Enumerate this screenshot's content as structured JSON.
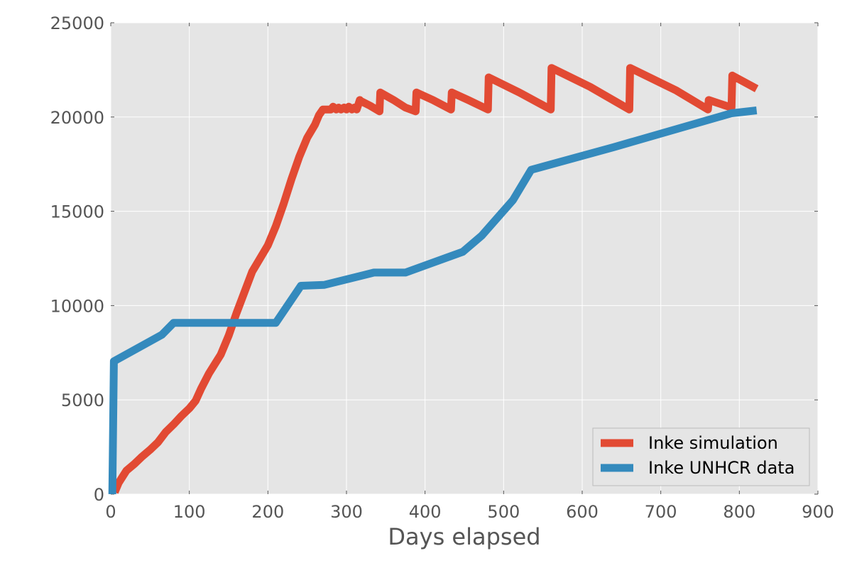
{
  "chart_data": {
    "type": "line",
    "title": "",
    "xlabel": "Days elapsed",
    "ylabel": "",
    "xlim": [
      0,
      900
    ],
    "ylim": [
      0,
      25000
    ],
    "xticks": [
      0,
      100,
      200,
      300,
      400,
      500,
      600,
      700,
      800,
      900
    ],
    "yticks": [
      0,
      5000,
      10000,
      15000,
      20000,
      25000
    ],
    "xtick_labels": [
      "0",
      "100",
      "200",
      "300",
      "400",
      "500",
      "600",
      "700",
      "800",
      "900"
    ],
    "ytick_labels": [
      "0",
      "5000",
      "10000",
      "15000",
      "20000",
      "25000"
    ],
    "grid": true,
    "legend_position": "lower-right",
    "series": [
      {
        "name": "Inke simulation",
        "color": "#e24a33",
        "x": [
          5,
          10,
          20,
          30,
          40,
          50,
          60,
          70,
          80,
          90,
          100,
          108,
          115,
          125,
          140,
          150,
          160,
          180,
          200,
          210,
          220,
          230,
          240,
          250,
          260,
          265,
          270,
          275,
          280,
          283,
          287,
          290,
          293,
          297,
          300,
          303,
          307,
          310,
          313,
          317,
          318,
          330,
          342,
          343,
          360,
          375,
          388,
          389,
          410,
          433,
          434,
          455,
          480,
          481,
          520,
          560,
          561,
          610,
          660,
          661,
          720,
          760,
          761,
          790,
          791,
          822
        ],
        "values": [
          100,
          600,
          1250,
          1600,
          2000,
          2350,
          2750,
          3300,
          3700,
          4150,
          4550,
          4950,
          5600,
          6400,
          7400,
          8400,
          9600,
          11800,
          13200,
          14200,
          15400,
          16700,
          17900,
          18900,
          19600,
          20100,
          20400,
          20400,
          20400,
          20550,
          20400,
          20500,
          20400,
          20500,
          20400,
          20550,
          20400,
          20500,
          20400,
          20900,
          20850,
          20600,
          20300,
          21300,
          20900,
          20500,
          20300,
          21300,
          20900,
          20400,
          21300,
          20900,
          20400,
          22100,
          21300,
          20400,
          22600,
          21600,
          20400,
          22600,
          21400,
          20400,
          20900,
          20500,
          22200,
          21500
        ]
      },
      {
        "name": "Inke UNHCR data",
        "color": "#348abd",
        "x": [
          2,
          4,
          65,
          80,
          210,
          242,
          272,
          335,
          375,
          448,
          472,
          512,
          535,
          640,
          790,
          822
        ],
        "values": [
          0,
          7050,
          8450,
          9080,
          9080,
          11050,
          11100,
          11750,
          11750,
          12850,
          13700,
          15600,
          17200,
          18400,
          20200,
          20350
        ]
      }
    ]
  }
}
